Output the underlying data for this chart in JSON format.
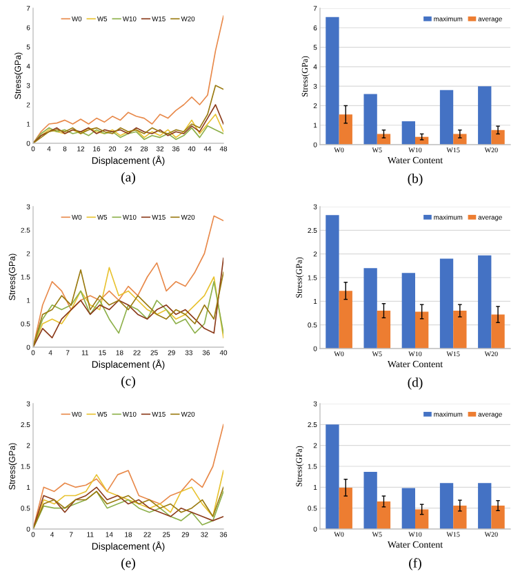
{
  "chart_data": [
    {
      "type": "line",
      "xlabel": "Displacement (Å)",
      "ylabel": "Stress(GPa)",
      "annotations": [
        "(a)"
      ],
      "legend": "top",
      "grid": false,
      "x": [
        0,
        2,
        4,
        6,
        8,
        10,
        12,
        14,
        16,
        18,
        20,
        22,
        24,
        26,
        28,
        30,
        32,
        34,
        36,
        38,
        40,
        42,
        44,
        46,
        48
      ],
      "xlim": [
        0,
        48
      ],
      "xticks": [
        0,
        4,
        8,
        12,
        16,
        20,
        24,
        28,
        32,
        36,
        40,
        44,
        48
      ],
      "ylim": [
        0,
        7
      ],
      "yticks": [
        0,
        1,
        2,
        3,
        4,
        5,
        6,
        7
      ],
      "series": [
        {
          "name": "W0",
          "color": "#e8894a",
          "values": [
            0,
            0.6,
            1.0,
            1.05,
            1.2,
            1.0,
            1.25,
            1.0,
            1.3,
            1.1,
            1.4,
            1.2,
            1.6,
            1.4,
            1.3,
            1.0,
            1.5,
            1.3,
            1.7,
            2.0,
            2.4,
            2.0,
            2.5,
            4.8,
            6.6
          ]
        },
        {
          "name": "W5",
          "color": "#e8c230",
          "values": [
            0,
            0.4,
            0.7,
            0.6,
            0.5,
            0.7,
            0.5,
            0.8,
            0.6,
            0.5,
            0.7,
            0.4,
            0.6,
            0.7,
            0.3,
            0.6,
            0.4,
            0.7,
            0.3,
            0.6,
            1.2,
            0.5,
            1.0,
            1.5,
            0.6
          ]
        },
        {
          "name": "W10",
          "color": "#8db04a",
          "values": [
            0,
            0.5,
            0.8,
            0.6,
            0.7,
            0.5,
            0.6,
            0.4,
            0.7,
            0.5,
            0.6,
            0.3,
            0.5,
            0.6,
            0.2,
            0.4,
            0.3,
            0.5,
            0.2,
            0.4,
            0.8,
            0.3,
            0.9,
            0.7,
            0.5
          ]
        },
        {
          "name": "W15",
          "color": "#8b3a1a",
          "values": [
            0,
            0.4,
            0.6,
            0.8,
            0.5,
            0.7,
            0.6,
            0.8,
            0.5,
            0.7,
            0.6,
            0.7,
            0.5,
            0.8,
            0.6,
            0.5,
            0.7,
            0.4,
            0.6,
            0.5,
            0.9,
            0.6,
            1.3,
            2.0,
            1.0
          ]
        },
        {
          "name": "W20",
          "color": "#9a7a10",
          "values": [
            0,
            0.3,
            0.6,
            0.7,
            0.6,
            0.8,
            0.5,
            0.7,
            0.8,
            0.6,
            0.5,
            0.8,
            0.6,
            0.7,
            0.5,
            0.8,
            0.6,
            0.5,
            0.7,
            0.6,
            1.0,
            0.8,
            1.5,
            3.0,
            2.8
          ]
        }
      ]
    },
    {
      "type": "bar",
      "xlabel": "Water Content",
      "ylabel": "Stress(GPa)",
      "annotations": [
        "(b)"
      ],
      "legend": "top right",
      "grid": "y",
      "categories": [
        "W0",
        "W5",
        "W10",
        "W15",
        "W20"
      ],
      "ylim": [
        0,
        7
      ],
      "yticks": [
        0,
        1,
        2,
        3,
        4,
        5,
        6,
        7
      ],
      "series": [
        {
          "name": "maximum",
          "color": "#4472c4",
          "values": [
            6.55,
            2.6,
            1.2,
            2.8,
            3.0
          ]
        },
        {
          "name": "average",
          "color": "#ed7d31",
          "values": [
            1.55,
            0.55,
            0.4,
            0.55,
            0.75
          ],
          "errors": [
            0.45,
            0.2,
            0.15,
            0.2,
            0.2
          ]
        }
      ]
    },
    {
      "type": "line",
      "xlabel": "Displacement (Å)",
      "ylabel": "Stress(GPa)",
      "annotations": [
        "(c)"
      ],
      "legend": "top",
      "grid": false,
      "x": [
        0,
        2,
        4,
        6,
        8,
        10,
        12,
        14,
        16,
        18,
        20,
        22,
        24,
        26,
        28,
        30,
        32,
        34,
        36,
        38,
        40
      ],
      "xlim": [
        0,
        40
      ],
      "xticks": [
        {
          "value": 0,
          "label": "0"
        },
        {
          "value": 3.64,
          "label": "4"
        },
        {
          "value": 7.27,
          "label": "7"
        },
        {
          "value": 10.91,
          "label": "11"
        },
        {
          "value": 14.55,
          "label": "15"
        },
        {
          "value": 18.18,
          "label": "18"
        },
        {
          "value": 21.82,
          "label": "22"
        },
        {
          "value": 25.45,
          "label": "25"
        },
        {
          "value": 29.09,
          "label": "29"
        },
        {
          "value": 32.73,
          "label": "33"
        },
        {
          "value": 36.36,
          "label": "36"
        },
        {
          "value": 40,
          "label": "40"
        }
      ],
      "ylim": [
        0,
        3
      ],
      "yticks": [
        0,
        0.5,
        1,
        1.5,
        2,
        2.5,
        3
      ],
      "series": [
        {
          "name": "W0",
          "color": "#e8894a",
          "values": [
            0,
            0.9,
            1.4,
            1.2,
            0.8,
            1.0,
            1.1,
            1.0,
            1.2,
            1.0,
            1.3,
            1.1,
            1.5,
            1.8,
            1.2,
            1.4,
            1.3,
            1.6,
            2.0,
            2.8,
            2.7
          ]
        },
        {
          "name": "W5",
          "color": "#e8c230",
          "values": [
            0,
            0.5,
            0.6,
            0.5,
            0.8,
            1.2,
            0.9,
            0.8,
            1.7,
            1.1,
            1.2,
            1.0,
            0.8,
            0.7,
            0.8,
            0.6,
            0.7,
            0.9,
            1.1,
            1.5,
            0.2
          ]
        },
        {
          "name": "W10",
          "color": "#8db04a",
          "values": [
            0,
            0.6,
            0.9,
            0.8,
            0.9,
            1.2,
            0.7,
            1.0,
            0.6,
            0.3,
            0.9,
            0.8,
            0.6,
            1.0,
            0.8,
            0.5,
            0.6,
            0.3,
            0.5,
            1.4,
            0.3
          ]
        },
        {
          "name": "W15",
          "color": "#8b3a1a",
          "values": [
            0,
            0.4,
            0.2,
            0.6,
            0.8,
            1.0,
            0.7,
            0.9,
            0.8,
            1.0,
            0.9,
            0.7,
            0.6,
            0.8,
            0.9,
            0.7,
            0.8,
            0.6,
            0.4,
            0.3,
            1.9
          ]
        },
        {
          "name": "W20",
          "color": "#9a7a10",
          "values": [
            0,
            0.7,
            0.8,
            1.1,
            0.9,
            1.65,
            0.8,
            1.1,
            0.9,
            1.0,
            0.8,
            1.1,
            0.9,
            0.7,
            0.6,
            0.8,
            0.7,
            0.5,
            0.9,
            0.6,
            1.6
          ]
        }
      ]
    },
    {
      "type": "bar",
      "xlabel": "Water Content",
      "ylabel": "Stress(GPa)",
      "annotations": [
        "(d)"
      ],
      "legend": "top right",
      "grid": "y",
      "categories": [
        "W0",
        "W5",
        "W10",
        "W15",
        "W20"
      ],
      "ylim": [
        0,
        3
      ],
      "yticks": [
        0,
        0.5,
        1,
        1.5,
        2,
        2.5,
        3
      ],
      "series": [
        {
          "name": "maximum",
          "color": "#4472c4",
          "values": [
            2.82,
            1.7,
            1.6,
            1.9,
            1.97
          ]
        },
        {
          "name": "average",
          "color": "#ed7d31",
          "values": [
            1.22,
            0.8,
            0.78,
            0.8,
            0.72
          ],
          "errors": [
            0.18,
            0.15,
            0.15,
            0.13,
            0.17
          ]
        }
      ]
    },
    {
      "type": "line",
      "xlabel": "Displacement (Å)",
      "ylabel": "Stress(GPa)",
      "annotations": [
        "(e)"
      ],
      "legend": "top",
      "grid": false,
      "x": [
        0,
        2,
        4,
        6,
        8,
        10,
        12,
        14,
        16,
        18,
        20,
        22,
        24,
        26,
        28,
        30,
        32,
        34,
        36
      ],
      "xlim": [
        0,
        36
      ],
      "xticks": [
        {
          "value": 0,
          "label": "0"
        },
        {
          "value": 3.6,
          "label": "4"
        },
        {
          "value": 7.2,
          "label": "7"
        },
        {
          "value": 10.8,
          "label": "11"
        },
        {
          "value": 14.4,
          "label": "14"
        },
        {
          "value": 18,
          "label": "18"
        },
        {
          "value": 21.6,
          "label": "22"
        },
        {
          "value": 25.2,
          "label": "25"
        },
        {
          "value": 28.8,
          "label": "29"
        },
        {
          "value": 32.4,
          "label": "32"
        },
        {
          "value": 36,
          "label": "36"
        }
      ],
      "ylim": [
        0,
        3
      ],
      "yticks": [
        0,
        0.5,
        1,
        1.5,
        2,
        2.5,
        3
      ],
      "series": [
        {
          "name": "W0",
          "color": "#e8894a",
          "values": [
            0,
            1.0,
            0.9,
            1.1,
            1.0,
            1.05,
            1.2,
            0.9,
            1.3,
            1.4,
            0.8,
            0.7,
            0.6,
            0.8,
            0.9,
            1.2,
            1.0,
            1.5,
            2.5
          ]
        },
        {
          "name": "W5",
          "color": "#e8c230",
          "values": [
            0,
            0.7,
            0.6,
            0.8,
            0.8,
            0.9,
            1.3,
            0.9,
            0.8,
            0.7,
            0.6,
            0.5,
            0.6,
            0.4,
            0.9,
            1.0,
            0.6,
            0.3,
            1.4
          ]
        },
        {
          "name": "W10",
          "color": "#8db04a",
          "values": [
            0,
            0.55,
            0.5,
            0.5,
            0.6,
            0.7,
            0.9,
            0.5,
            0.6,
            0.7,
            0.5,
            0.4,
            0.5,
            0.3,
            0.2,
            0.4,
            0.1,
            0.2,
            0.9
          ]
        },
        {
          "name": "W15",
          "color": "#8b3a1a",
          "values": [
            0,
            0.8,
            0.7,
            0.4,
            0.7,
            0.8,
            1.0,
            0.7,
            0.8,
            0.6,
            0.7,
            0.5,
            0.4,
            0.3,
            0.5,
            0.4,
            0.3,
            0.2,
            0.3
          ]
        },
        {
          "name": "W20",
          "color": "#9a7a10",
          "values": [
            0,
            0.6,
            0.7,
            0.5,
            0.7,
            0.7,
            0.9,
            0.6,
            0.7,
            0.8,
            0.6,
            0.7,
            0.5,
            0.6,
            0.4,
            0.5,
            0.7,
            0.3,
            1.0
          ]
        }
      ]
    },
    {
      "type": "bar",
      "xlabel": "Water Content",
      "ylabel": "Stress(GPa)",
      "annotations": [
        "(f)"
      ],
      "legend": "top right",
      "grid": "y",
      "categories": [
        "W0",
        "W5",
        "W10",
        "W15",
        "W20"
      ],
      "ylim": [
        0,
        3
      ],
      "yticks": [
        0,
        0.5,
        1,
        1.5,
        2,
        2.5,
        3
      ],
      "series": [
        {
          "name": "maximum",
          "color": "#4472c4",
          "values": [
            2.5,
            1.37,
            0.98,
            1.1,
            1.1
          ]
        },
        {
          "name": "average",
          "color": "#ed7d31",
          "values": [
            0.99,
            0.66,
            0.47,
            0.56,
            0.56
          ],
          "errors": [
            0.2,
            0.13,
            0.12,
            0.13,
            0.12
          ]
        }
      ]
    }
  ]
}
